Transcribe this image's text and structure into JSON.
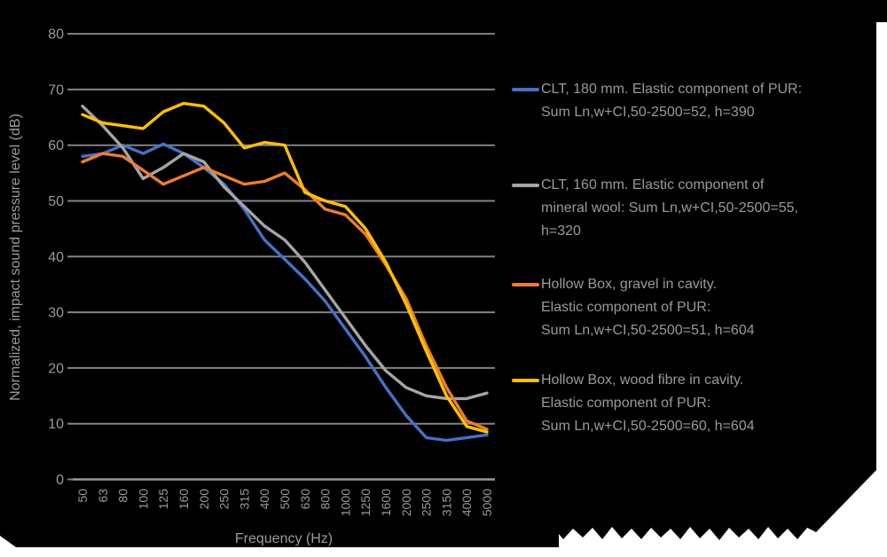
{
  "chart_data": {
    "type": "line",
    "title": "",
    "xlabel": "Frequency (Hz)",
    "ylabel": "Normalized, impact sound pressure level (dB)",
    "ylim": [
      0,
      80
    ],
    "ytick_step": 10,
    "y_ticks": [
      0,
      10,
      20,
      30,
      40,
      50,
      60,
      70,
      80
    ],
    "grid": true,
    "legend_position": "right",
    "categories": [
      "50",
      "63",
      "80",
      "100",
      "125",
      "160",
      "200",
      "250",
      "315",
      "400",
      "500",
      "630",
      "800",
      "1000",
      "1250",
      "1600",
      "2000",
      "2500",
      "3150",
      "4000",
      "5000"
    ],
    "series": [
      {
        "name": "CLT, 180 mm. Elastic component of PUR: Sum Ln,w+CI,50-2500=52, h=390",
        "color": "#4472C4",
        "values": [
          58,
          58.5,
          60,
          58.5,
          60.2,
          58.5,
          56,
          53,
          48.5,
          43,
          39.5,
          36,
          32,
          27,
          22,
          16.5,
          11.5,
          7.5,
          7,
          7.5,
          8
        ]
      },
      {
        "name": "CLT, 160 mm. Elastic component of mineral wool: Sum Ln,w+CI,50-2500=55, h=320",
        "color": "#A5A5A5",
        "values": [
          67,
          63.5,
          59.5,
          54,
          56,
          58.5,
          57,
          52.5,
          49,
          45.5,
          43,
          39,
          34,
          29,
          24,
          19.5,
          16.5,
          15,
          14.5,
          14.5,
          15.5
        ]
      },
      {
        "name": "Hollow Box, gravel in cavity. Elastic component of PUR: Sum Ln,w+CI,50-2500=51, h=604",
        "color": "#ED7D31",
        "values": [
          57,
          58.5,
          58,
          55.5,
          53,
          54.5,
          56,
          54.5,
          53,
          53.5,
          55,
          52,
          48.5,
          47.5,
          44,
          38.5,
          32.5,
          24,
          16.5,
          10.5,
          9
        ]
      },
      {
        "name": "Hollow Box, wood fibre in cavity. Elastic component of PUR: Sum Ln,w+CI,50-2500=60, h=604",
        "color": "#FFC000",
        "values": [
          65.5,
          64,
          63.5,
          63,
          66,
          67.5,
          67,
          64,
          59.5,
          60.5,
          60,
          51.5,
          50,
          49,
          45,
          39,
          31.5,
          23,
          15,
          9.5,
          8.5
        ]
      }
    ]
  },
  "axes": {
    "x_title": "Frequency (Hz)",
    "y_title": "Normalized, impact sound pressure level (dB)"
  },
  "legend": {
    "entries": [
      {
        "color": "#4472C4",
        "lines": [
          "CLT, 180 mm. Elastic component of PUR:",
          "Sum Ln,w+CI,50-2500=52, h=390",
          ""
        ]
      },
      {
        "color": "#A5A5A5",
        "lines": [
          "CLT, 160 mm. Elastic component of",
          "mineral wool: Sum Ln,w+CI,50-2500=55,",
          "h=320"
        ]
      },
      {
        "color": "#ED7D31",
        "lines": [
          "Hollow Box, gravel in cavity.",
          "Elastic component of PUR:",
          "Sum Ln,w+CI,50-2500=51, h=604"
        ]
      },
      {
        "color": "#FFC000",
        "lines": [
          "Hollow Box, wood fibre in cavity.",
          "Elastic component of PUR:",
          "Sum Ln,w+CI,50-2500=60, h=604"
        ]
      }
    ]
  },
  "colors": {
    "slide_background": "#000000",
    "page_background": "#ffffff",
    "gridline": "#838383",
    "axis_line": "#9a9a9a",
    "text": "#9a9a9a"
  }
}
